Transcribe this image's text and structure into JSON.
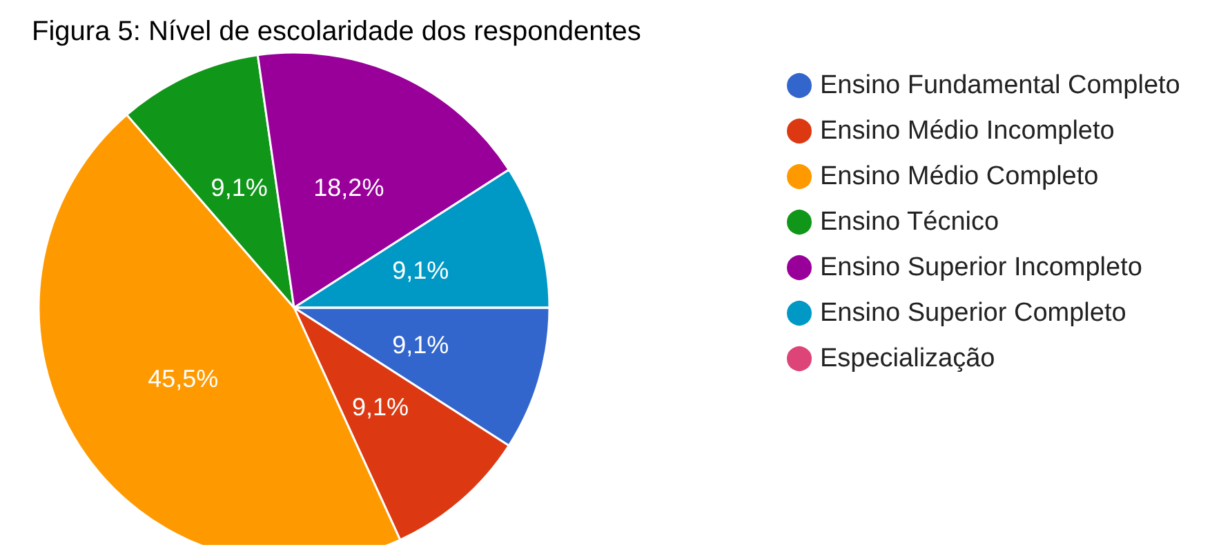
{
  "chart_data": {
    "type": "pie",
    "title": "Figura 5: Nível de escolaridade dos respondentes",
    "categories": [
      "Ensino Fundamental Completo",
      "Ensino Médio Incompleto",
      "Ensino Médio Completo",
      "Ensino Técnico",
      "Ensino Superior Incompleto",
      "Ensino Superior Completo",
      "Especialização"
    ],
    "values": [
      9.1,
      9.1,
      45.5,
      9.1,
      18.2,
      9.1,
      0
    ],
    "value_labels": [
      "9,1%",
      "9,1%",
      "45,5%",
      "9,1%",
      "18,2%",
      "9,1%",
      null
    ],
    "colors": [
      "#3366cc",
      "#dc3912",
      "#ff9900",
      "#109618",
      "#990099",
      "#0099c6",
      "#dd4477"
    ],
    "legend": "right"
  }
}
